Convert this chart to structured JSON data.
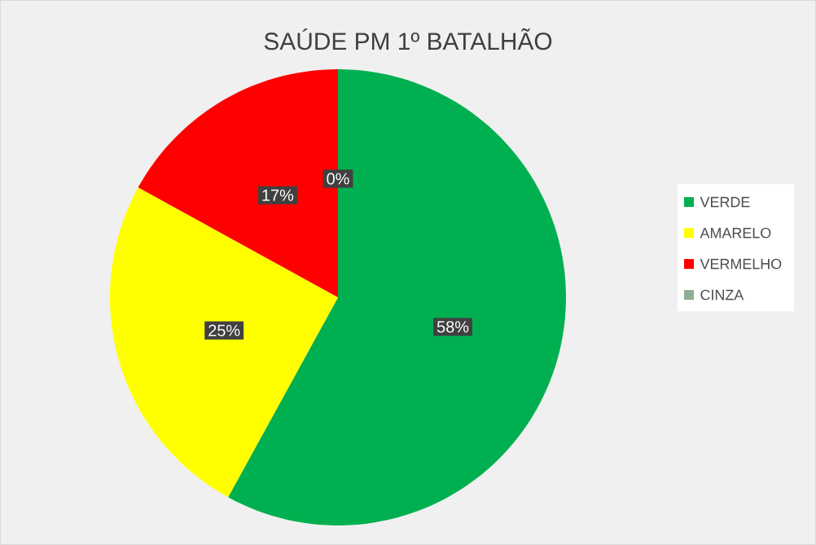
{
  "chart_data": {
    "type": "pie",
    "title": "SAÚDE PM 1º BATALHÃO",
    "categories": [
      "VERDE",
      "AMARELO",
      "VERMELHO",
      "CINZA"
    ],
    "values": [
      58,
      25,
      17,
      0
    ],
    "colors": [
      "#00b050",
      "#ffff00",
      "#ff0000",
      "#8faf94"
    ],
    "value_labels": [
      "58%",
      "25%",
      "17%",
      "0%"
    ],
    "legend": "right"
  }
}
